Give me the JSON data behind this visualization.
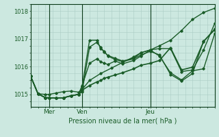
{
  "xlabel": "Pression niveau de la mer( hPa )",
  "bg_color": "#cce8e0",
  "grid_color": "#aaccc4",
  "line_color": "#1a5c28",
  "dark_line_color": "#0a3a18",
  "yticks": [
    1015,
    1016,
    1017,
    1018
  ],
  "ylim": [
    1014.55,
    1018.25
  ],
  "xlim": [
    0,
    100
  ],
  "day_labels": [
    [
      "Mer",
      10
    ],
    [
      "Ven",
      28
    ],
    [
      "Jeu",
      65
    ]
  ],
  "day_vlines": [
    10,
    28,
    65
  ],
  "series": [
    [
      0,
      1015.65,
      4,
      1015.02,
      8,
      1015.0,
      10,
      1015.0,
      14,
      1015.05,
      18,
      1015.1,
      22,
      1015.12,
      26,
      1015.08,
      28,
      1015.18,
      32,
      1015.5,
      38,
      1015.75,
      44,
      1015.95,
      50,
      1016.15,
      56,
      1016.35,
      60,
      1016.5,
      65,
      1016.6,
      70,
      1016.75,
      76,
      1016.95,
      82,
      1017.3,
      88,
      1017.7,
      94,
      1017.95,
      100,
      1018.1
    ],
    [
      0,
      1015.65,
      4,
      1015.02,
      8,
      1014.88,
      10,
      1014.88,
      14,
      1014.86,
      18,
      1014.88,
      22,
      1014.95,
      26,
      1015.0,
      28,
      1015.1,
      32,
      1016.7,
      36,
      1016.88,
      38,
      1016.7,
      40,
      1016.52,
      42,
      1016.4,
      46,
      1016.3,
      50,
      1016.2,
      56,
      1016.3,
      60,
      1016.5,
      65,
      1016.6,
      70,
      1016.65,
      76,
      1016.65,
      82,
      1015.82,
      88,
      1015.88,
      94,
      1016.6,
      100,
      1017.55
    ],
    [
      0,
      1015.65,
      4,
      1015.02,
      8,
      1014.88,
      10,
      1014.88,
      14,
      1014.86,
      18,
      1014.88,
      22,
      1014.95,
      26,
      1015.0,
      28,
      1015.3,
      32,
      1016.95,
      36,
      1016.95,
      38,
      1016.65,
      40,
      1016.55,
      42,
      1016.38,
      46,
      1016.25,
      50,
      1016.18,
      56,
      1016.28,
      60,
      1016.42,
      65,
      1016.55,
      70,
      1016.42,
      76,
      1015.72,
      82,
      1015.48,
      88,
      1015.75,
      94,
      1016.92,
      100,
      1017.32
    ],
    [
      0,
      1015.65,
      4,
      1015.02,
      8,
      1014.88,
      10,
      1014.88,
      14,
      1014.86,
      18,
      1014.88,
      22,
      1014.95,
      26,
      1015.0,
      28,
      1015.15,
      32,
      1015.32,
      36,
      1015.45,
      38,
      1015.5,
      40,
      1015.58,
      42,
      1015.62,
      46,
      1015.7,
      50,
      1015.78,
      56,
      1015.92,
      60,
      1016.05,
      65,
      1016.12,
      70,
      1016.22,
      76,
      1016.68,
      82,
      1015.88,
      88,
      1015.98,
      94,
      1016.9,
      100,
      1017.35
    ],
    [
      0,
      1015.65,
      4,
      1015.02,
      8,
      1014.88,
      10,
      1014.88,
      14,
      1014.86,
      18,
      1014.88,
      22,
      1014.95,
      26,
      1015.0,
      28,
      1015.32,
      32,
      1016.12,
      36,
      1016.28,
      38,
      1016.18,
      40,
      1016.12,
      42,
      1016.08,
      46,
      1016.2,
      50,
      1016.1,
      56,
      1016.22,
      60,
      1016.38,
      65,
      1016.6,
      70,
      1016.38,
      76,
      1015.78,
      82,
      1015.52,
      88,
      1015.85,
      94,
      1015.92,
      100,
      1017.18
    ]
  ]
}
